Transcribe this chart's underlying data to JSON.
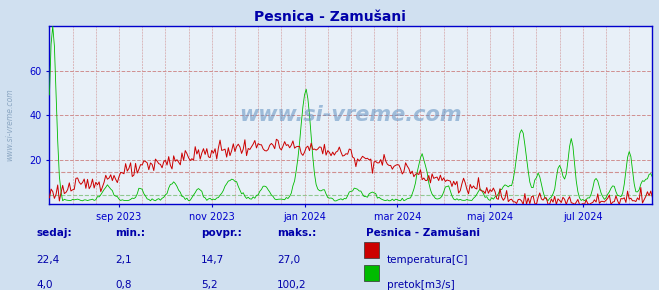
{
  "title": "Pesnica - Zamušani",
  "bg_color": "#d0e0f0",
  "plot_bg_color": "#e8f0f8",
  "grid_color_red": "#d09090",
  "grid_color_green": "#90c890",
  "temp_color": "#cc0000",
  "flow_color": "#00bb00",
  "axis_color": "#0000cc",
  "text_color": "#0000aa",
  "title_color": "#0000aa",
  "temp_avg": 14.7,
  "flow_avg": 5.2,
  "watermark": "www.si-vreme.com",
  "footer_labels": [
    "sedaj:",
    "min.:",
    "povpr.:",
    "maks.:"
  ],
  "footer_temp": [
    "22,4",
    "2,1",
    "14,7",
    "27,0"
  ],
  "footer_flow": [
    "4,0",
    "0,8",
    "5,2",
    "100,2"
  ],
  "legend_title": "Pesnica - Zamušani",
  "legend_temp": "temperatura[C]",
  "legend_flow": "pretok[m3/s]",
  "x_tick_labels": [
    "sep 2023",
    "nov 2023",
    "jan 2024",
    "mar 2024",
    "maj 2024",
    "jul 2024"
  ],
  "sidebar_text": "www.si-vreme.com",
  "ymax": 80,
  "ytick_labels": [
    "20",
    "40",
    "60"
  ],
  "ytick_vals": [
    20,
    40,
    60
  ]
}
